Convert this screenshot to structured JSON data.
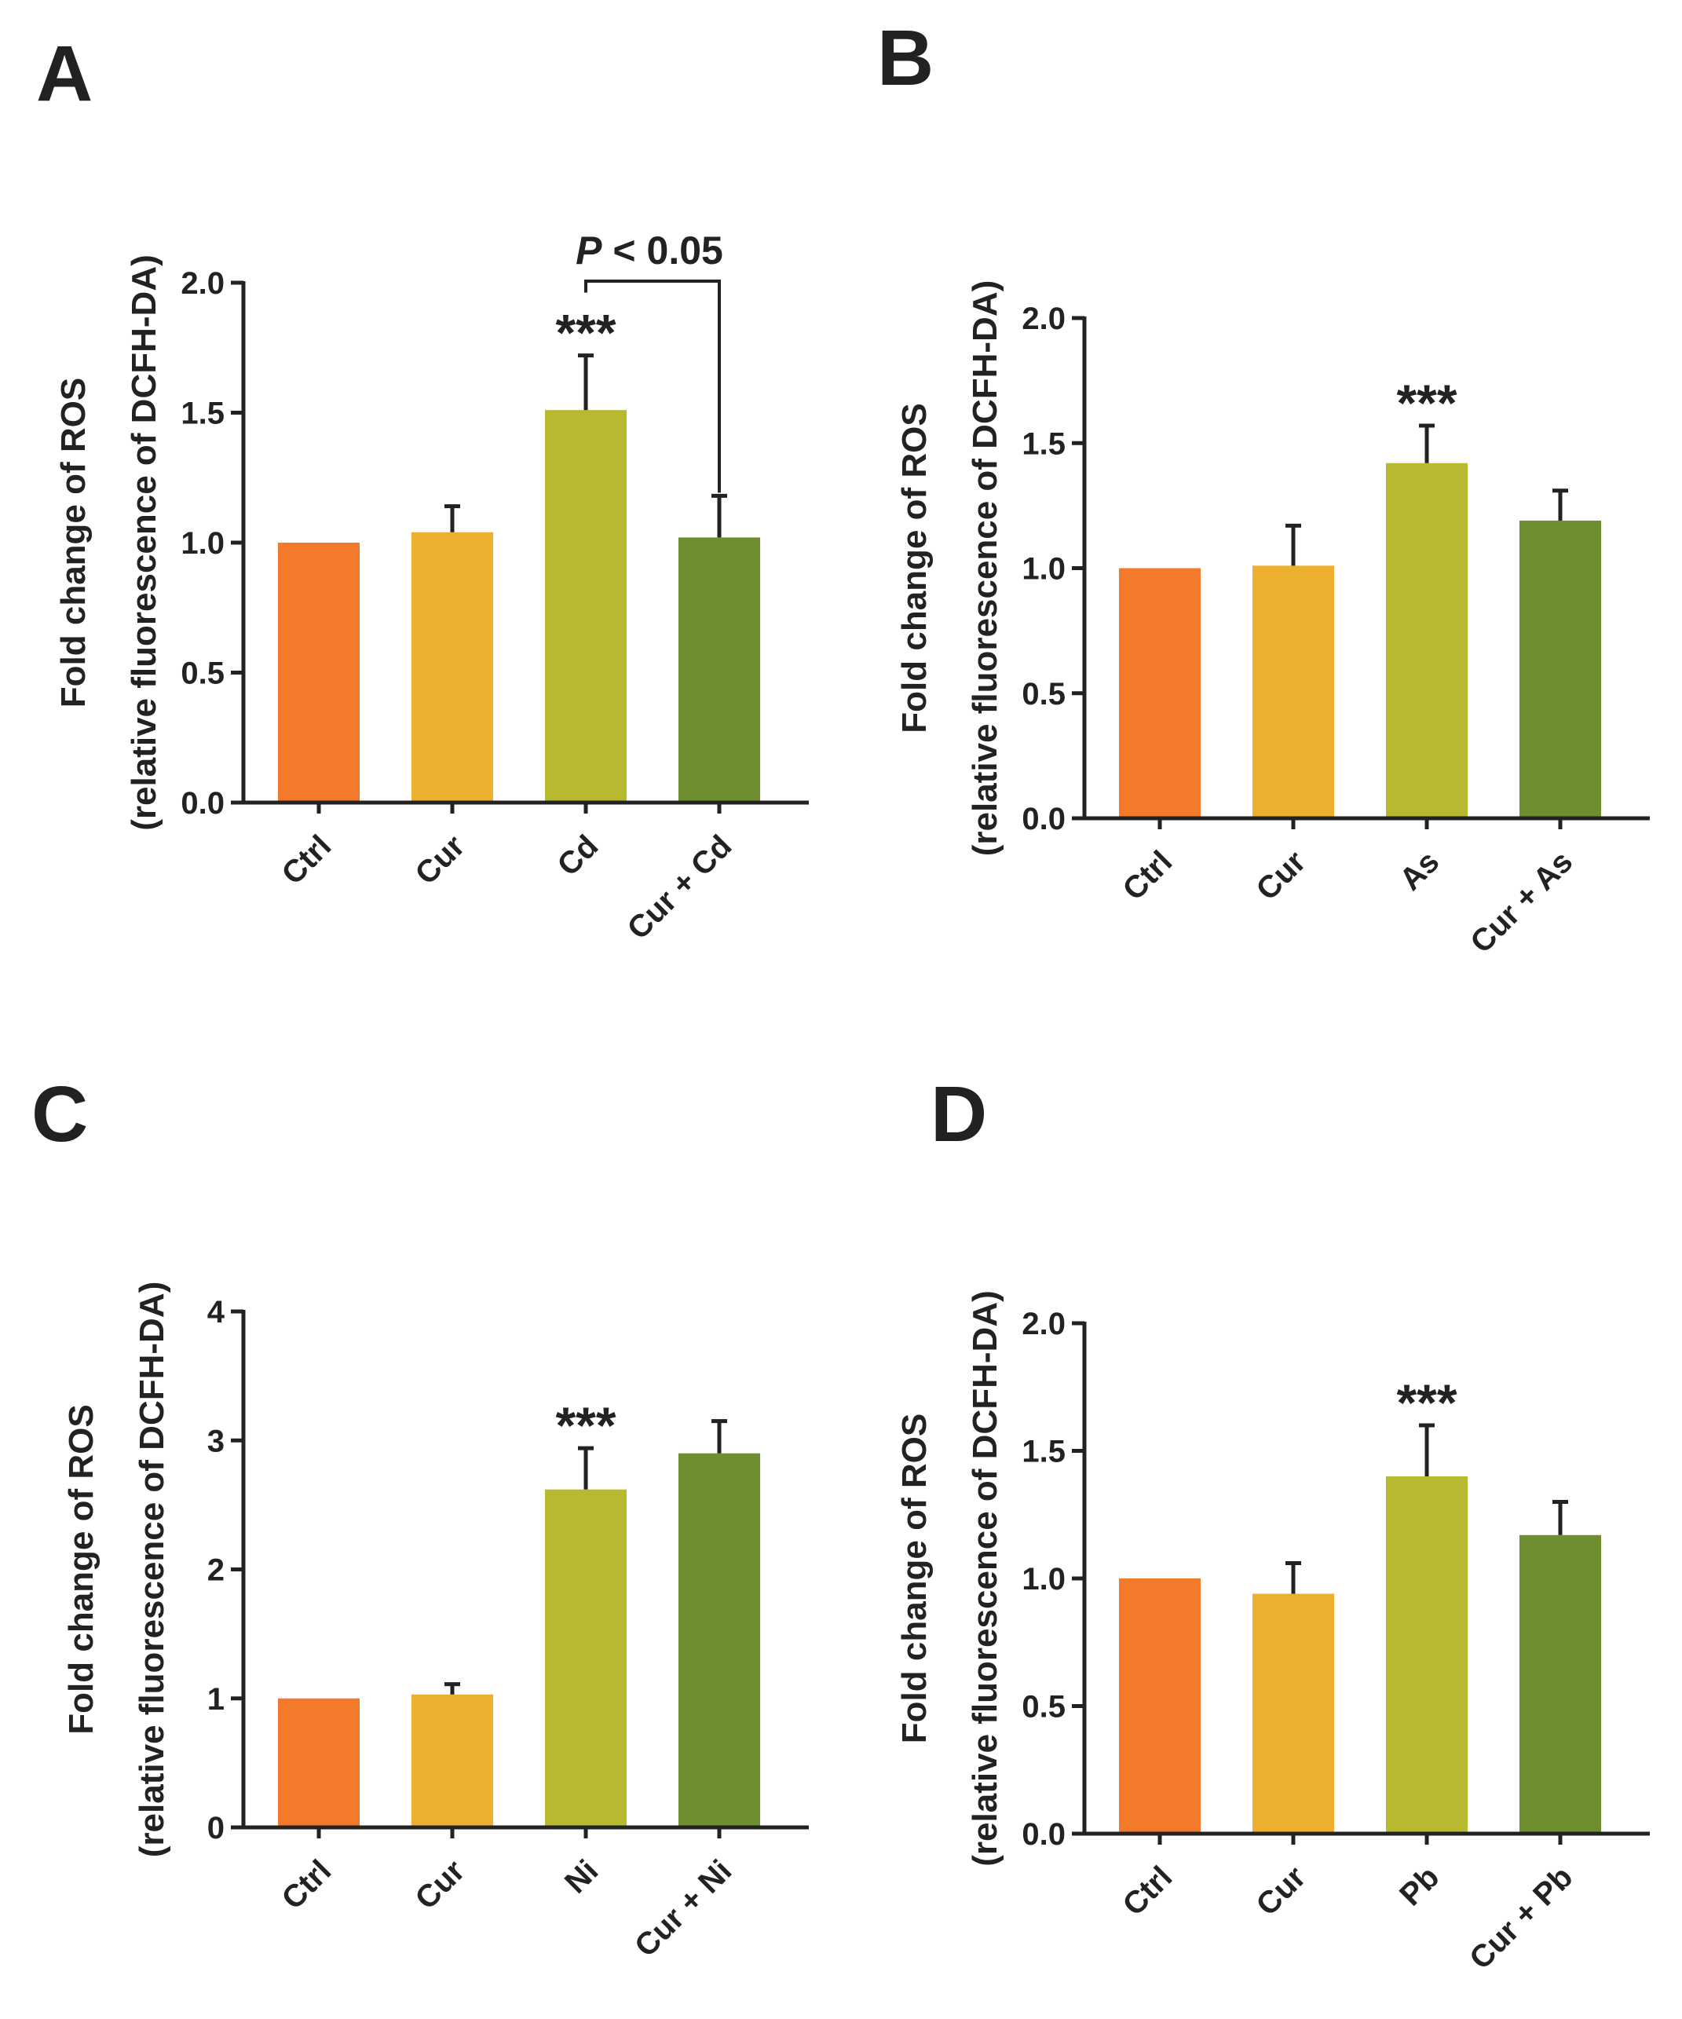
{
  "chart_data": [
    {
      "panel": "A",
      "type": "bar",
      "ylabel_line1": "Fold change of ROS",
      "ylabel_line2": "(relative fluorescence of DCFH-DA)",
      "ylim": [
        0,
        2.0
      ],
      "yticks": [
        "0.0",
        "0.5",
        "1.0",
        "1.5",
        "2.0"
      ],
      "categories": [
        "Ctrl",
        "Cur",
        "Cd",
        "Cur + Cd"
      ],
      "values": [
        1.0,
        1.04,
        1.51,
        1.02
      ],
      "errors": [
        0,
        0.1,
        0.21,
        0.16
      ],
      "colors": [
        "#F27A2A",
        "#EDAF2E",
        "#B7BA2F",
        "#6E8E2F"
      ],
      "annotations": [
        {
          "category": "Cd",
          "text": "***"
        }
      ],
      "comparison": {
        "from": "Cd",
        "to": "Cur + Cd",
        "p_symbol": "P",
        "p_text": " < 0.05"
      }
    },
    {
      "panel": "B",
      "type": "bar",
      "ylabel_line1": "Fold change of ROS",
      "ylabel_line2": "(relative fluorescence of DCFH-DA)",
      "ylim": [
        0,
        2.0
      ],
      "yticks": [
        "0.0",
        "0.5",
        "1.0",
        "1.5",
        "2.0"
      ],
      "categories": [
        "Ctrl",
        "Cur",
        "As",
        "Cur + As"
      ],
      "values": [
        1.0,
        1.01,
        1.42,
        1.19
      ],
      "errors": [
        0,
        0.16,
        0.15,
        0.12
      ],
      "colors": [
        "#F27A2A",
        "#EDAF2E",
        "#B7BA2F",
        "#6E8E2F"
      ],
      "annotations": [
        {
          "category": "As",
          "text": "***"
        }
      ]
    },
    {
      "panel": "C",
      "type": "bar",
      "ylabel_line1": "Fold change of ROS",
      "ylabel_line2": "(relative fluorescence of DCFH-DA)",
      "ylim": [
        0,
        4
      ],
      "yticks": [
        "0",
        "1",
        "2",
        "3",
        "4"
      ],
      "categories": [
        "Ctrl",
        "Cur",
        "Ni",
        "Cur + Ni"
      ],
      "values": [
        1.0,
        1.03,
        2.62,
        2.9
      ],
      "errors": [
        0,
        0.08,
        0.32,
        0.25
      ],
      "colors": [
        "#F27A2A",
        "#EDAF2E",
        "#B7BA2F",
        "#6E8E2F"
      ],
      "annotations": [
        {
          "category": "Ni",
          "text": "***"
        }
      ]
    },
    {
      "panel": "D",
      "type": "bar",
      "ylabel_line1": "Fold change of ROS",
      "ylabel_line2": "(relative fluorescence of DCFH-DA)",
      "ylim": [
        0,
        2.0
      ],
      "yticks": [
        "0.0",
        "0.5",
        "1.0",
        "1.5",
        "2.0"
      ],
      "categories": [
        "Ctrl",
        "Cur",
        "Pb",
        "Cur + Pb"
      ],
      "values": [
        1.0,
        0.94,
        1.4,
        1.17
      ],
      "errors": [
        0,
        0.12,
        0.2,
        0.13
      ],
      "colors": [
        "#F27A2A",
        "#EDAF2E",
        "#B7BA2F",
        "#6E8E2F"
      ],
      "annotations": [
        {
          "category": "Pb",
          "text": "***"
        }
      ]
    }
  ]
}
